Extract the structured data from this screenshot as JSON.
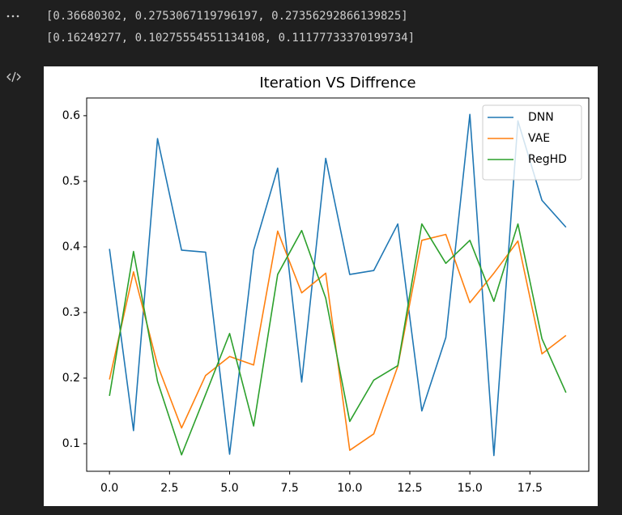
{
  "output_lines": [
    "[0.36680302, 0.2753067119796197, 0.27356292866139825]",
    "[0.16249277, 0.10275554551134108, 0.11177733370199734]"
  ],
  "chart_data": {
    "type": "line",
    "title": "Iteration VS Diffrence",
    "x": [
      0,
      1,
      2,
      3,
      4,
      5,
      6,
      7,
      8,
      9,
      10,
      11,
      12,
      13,
      14,
      15,
      16,
      17,
      18,
      19
    ],
    "series": [
      {
        "name": "DNN",
        "color": "#1f77b4",
        "values": [
          0.397,
          0.12,
          0.565,
          0.395,
          0.392,
          0.084,
          0.395,
          0.52,
          0.194,
          0.535,
          0.358,
          0.364,
          0.435,
          0.15,
          0.262,
          0.602,
          0.082,
          0.592,
          0.471,
          0.43
        ]
      },
      {
        "name": "VAE",
        "color": "#ff7f0e",
        "values": [
          0.198,
          0.362,
          0.22,
          0.124,
          0.204,
          0.233,
          0.22,
          0.424,
          0.33,
          0.36,
          0.09,
          0.115,
          0.218,
          0.41,
          0.419,
          0.315,
          0.36,
          0.409,
          0.237,
          0.265
        ]
      },
      {
        "name": "RegHD",
        "color": "#2ca02c",
        "values": [
          0.173,
          0.393,
          0.195,
          0.083,
          0.175,
          0.268,
          0.127,
          0.358,
          0.425,
          0.322,
          0.134,
          0.197,
          0.219,
          0.435,
          0.375,
          0.41,
          0.317,
          0.435,
          0.26,
          0.178
        ]
      }
    ],
    "xlim": [
      -0.95,
      19.95
    ],
    "xticks": [
      {
        "value": 0,
        "label": "0.0"
      },
      2.5,
      {
        "value": 5,
        "label": "5.0"
      },
      7.5,
      {
        "value": 10,
        "label": "10.0"
      },
      12.5,
      {
        "value": 15,
        "label": "15.0"
      },
      17.5
    ],
    "ylim": [
      0.058,
      0.627
    ],
    "yticks": [
      0.1,
      0.2,
      0.3,
      0.4,
      0.5,
      0.6
    ],
    "legend": "upper right",
    "grid": false
  }
}
